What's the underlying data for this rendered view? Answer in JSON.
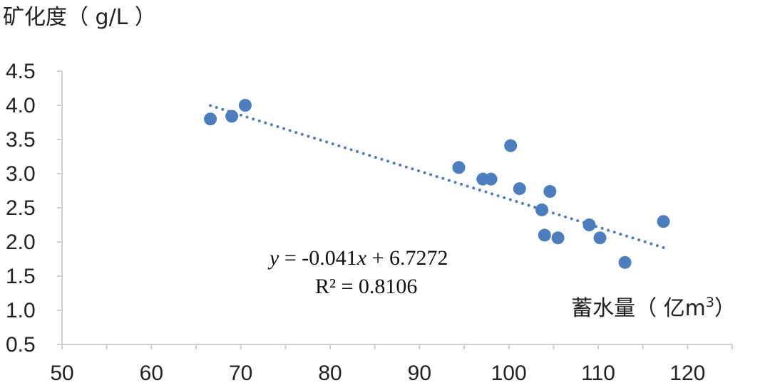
{
  "chart_data": {
    "type": "scatter",
    "ylabel": "矿化度（ g/L ）",
    "xlabel_main": "蓄水量（ 亿m",
    "xlabel_sup": "3",
    "xlabel_close": "）",
    "xlim": [
      50,
      125
    ],
    "ylim": [
      0.5,
      4.5
    ],
    "x_ticks": [
      "50",
      "60",
      "70",
      "80",
      "90",
      "100",
      "110",
      "120"
    ],
    "y_ticks": [
      "0.5",
      "1.0",
      "1.5",
      "2.0",
      "2.5",
      "3.0",
      "3.5",
      "4.0",
      "4.5"
    ],
    "x_tick_values": [
      50,
      60,
      70,
      80,
      90,
      100,
      110,
      120
    ],
    "y_tick_values": [
      0.5,
      1.0,
      1.5,
      2.0,
      2.5,
      3.0,
      3.5,
      4.0,
      4.5
    ],
    "grid": false,
    "series": [
      {
        "color": "#4a7ebf",
        "points": [
          {
            "x": 66.6,
            "y": 3.8
          },
          {
            "x": 69.0,
            "y": 3.84
          },
          {
            "x": 70.5,
            "y": 4.0
          },
          {
            "x": 94.4,
            "y": 3.09
          },
          {
            "x": 97.1,
            "y": 2.92
          },
          {
            "x": 98.0,
            "y": 2.92
          },
          {
            "x": 100.2,
            "y": 3.41
          },
          {
            "x": 101.2,
            "y": 2.78
          },
          {
            "x": 103.7,
            "y": 2.47
          },
          {
            "x": 104.0,
            "y": 2.1
          },
          {
            "x": 104.6,
            "y": 2.74
          },
          {
            "x": 105.5,
            "y": 2.06
          },
          {
            "x": 109.0,
            "y": 2.25
          },
          {
            "x": 110.2,
            "y": 2.06
          },
          {
            "x": 113.0,
            "y": 1.7
          },
          {
            "x": 117.3,
            "y": 2.3
          }
        ]
      }
    ],
    "trendline": {
      "style": "dotted",
      "color": "#4a7ebf",
      "slope": -0.041,
      "intercept": 6.7272,
      "x_start": 66.6,
      "x_end": 117.3
    },
    "equation": {
      "y": "y",
      "mid": " = -0.041",
      "x": "x",
      "tail": " + 6.7272",
      "r2": "R² = 0.8106"
    }
  }
}
